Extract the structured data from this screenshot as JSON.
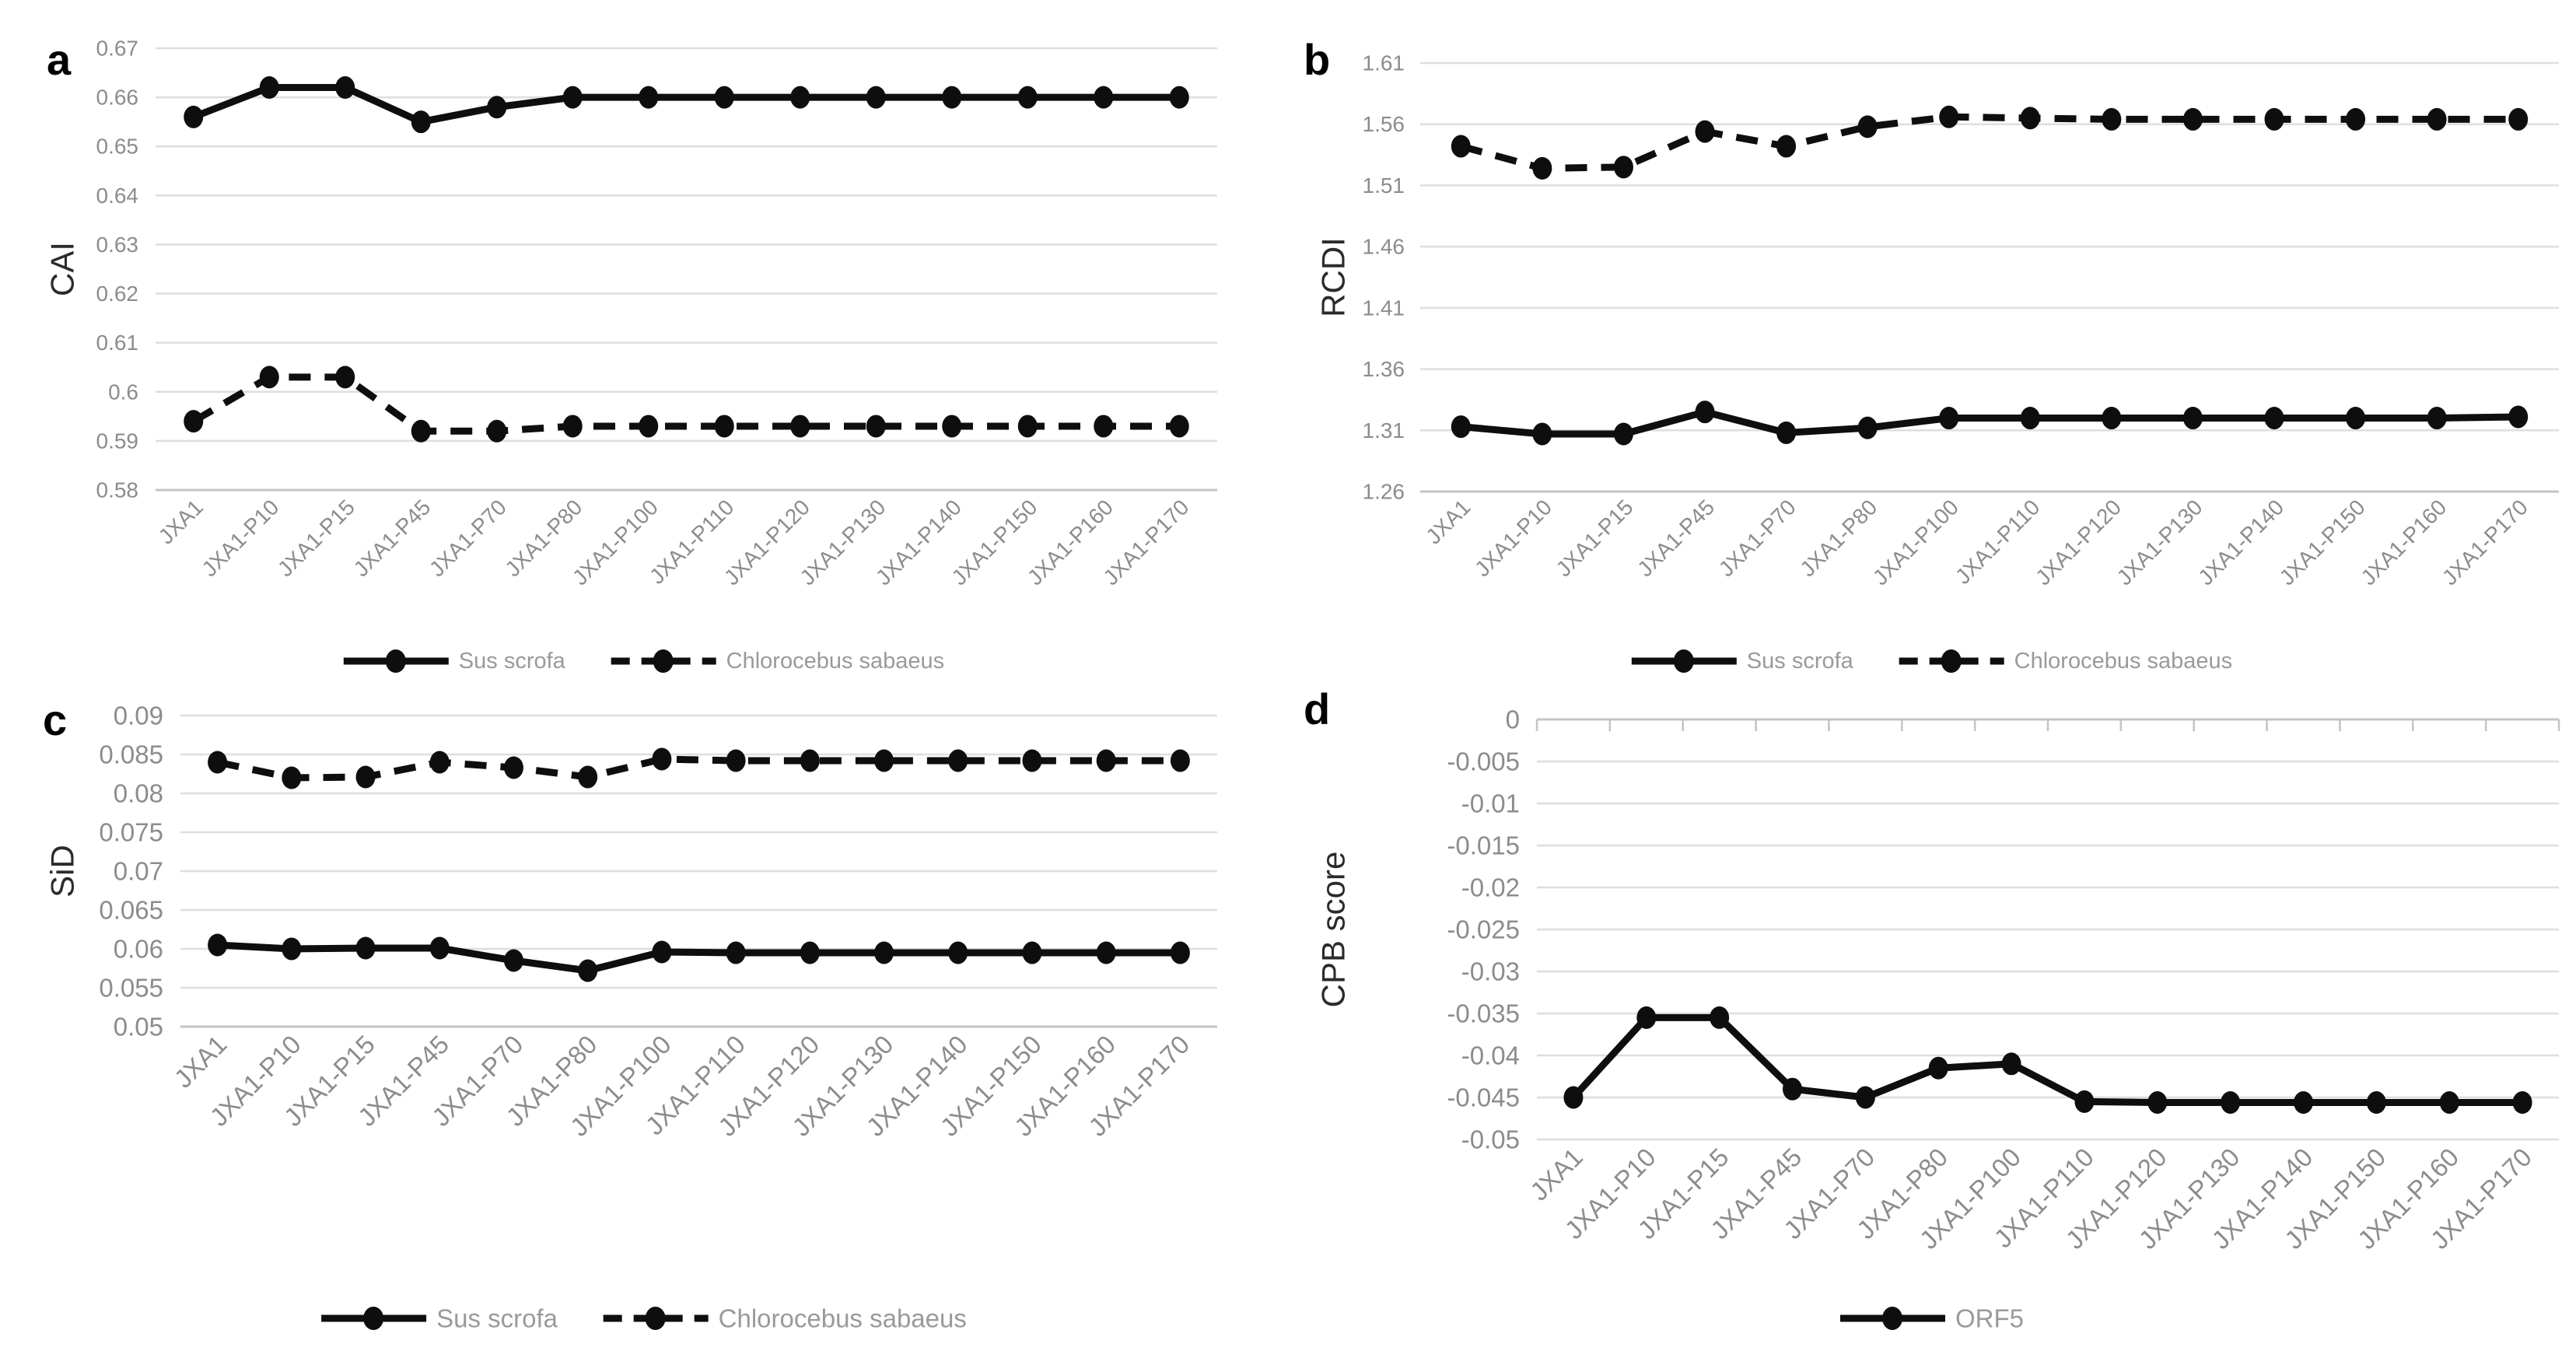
{
  "colors": {
    "background": "#ffffff",
    "line": "#0e0e0e",
    "gridline": "#dedede",
    "axis_line": "#c4c4c4",
    "tick_label": "#8c8c8c",
    "legend_label": "#9a9a9a",
    "axis_title": "#2b2b2b",
    "panel_letter": "#000000"
  },
  "chart_data": [
    {
      "id": "a",
      "panel_label": "a",
      "type": "line",
      "ylabel": "CAI",
      "ylim": [
        0.58,
        0.67
      ],
      "grid": true,
      "legend_position": "bottom",
      "ytick_values": [
        0.67,
        0.66,
        0.65,
        0.64,
        0.63,
        0.62,
        0.61,
        0.6,
        0.59,
        0.58
      ],
      "ytick_labels": [
        "0.67",
        "0.66",
        "0.65",
        "0.64",
        "0.63",
        "0.62",
        "0.61",
        "0.6",
        "0.59",
        "0.58"
      ],
      "categories": [
        "JXA1",
        "JXA1-P10",
        "JXA1-P15",
        "JXA1-P45",
        "JXA1-P70",
        "JXA1-P80",
        "JXA1-P100",
        "JXA1-P110",
        "JXA1-P120",
        "JXA1-P130",
        "JXA1-P140",
        "JXA1-P150",
        "JXA1-P160",
        "JXA1-P170"
      ],
      "series": [
        {
          "name": "Sus scrofa",
          "line_style": "solid",
          "values": [
            0.656,
            0.662,
            0.662,
            0.655,
            0.658,
            0.66,
            0.66,
            0.66,
            0.66,
            0.66,
            0.66,
            0.66,
            0.66,
            0.66
          ]
        },
        {
          "name": "Chlorocebus sabaeus",
          "line_style": "dashed",
          "values": [
            0.594,
            0.603,
            0.603,
            0.592,
            0.592,
            0.593,
            0.593,
            0.593,
            0.593,
            0.593,
            0.593,
            0.593,
            0.593,
            0.593
          ]
        }
      ]
    },
    {
      "id": "b",
      "panel_label": "b",
      "type": "line",
      "ylabel": "RCDI",
      "ylim": [
        1.26,
        1.61
      ],
      "grid": true,
      "legend_position": "bottom",
      "ytick_values": [
        1.61,
        1.56,
        1.51,
        1.46,
        1.41,
        1.36,
        1.31,
        1.26
      ],
      "ytick_labels": [
        "1.61",
        "1.56",
        "1.51",
        "1.46",
        "1.41",
        "1.36",
        "1.31",
        "1.26"
      ],
      "categories": [
        "JXA1",
        "JXA1-P10",
        "JXA1-P15",
        "JXA1-P45",
        "JXA1-P70",
        "JXA1-P80",
        "JXA1-P100",
        "JXA1-P110",
        "JXA1-P120",
        "JXA1-P130",
        "JXA1-P140",
        "JXA1-P150",
        "JXA1-P160",
        "JXA1-P170"
      ],
      "series": [
        {
          "name": "Sus scrofa",
          "line_style": "solid",
          "values": [
            1.313,
            1.307,
            1.307,
            1.325,
            1.308,
            1.312,
            1.32,
            1.32,
            1.32,
            1.32,
            1.32,
            1.32,
            1.32,
            1.321
          ]
        },
        {
          "name": "Chlorocebus sabaeus",
          "line_style": "dashed",
          "values": [
            1.542,
            1.524,
            1.525,
            1.554,
            1.542,
            1.558,
            1.566,
            1.565,
            1.564,
            1.564,
            1.564,
            1.564,
            1.564,
            1.564
          ]
        }
      ]
    },
    {
      "id": "c",
      "panel_label": "c",
      "type": "line",
      "ylabel": "SiD",
      "ylim": [
        0.05,
        0.09
      ],
      "grid": true,
      "legend_position": "bottom",
      "ytick_values": [
        0.09,
        0.085,
        0.08,
        0.075,
        0.07,
        0.065,
        0.06,
        0.055,
        0.05
      ],
      "ytick_labels": [
        "0.09",
        "0.085",
        "0.08",
        "0.075",
        "0.07",
        "0.065",
        "0.06",
        "0.055",
        "0.05"
      ],
      "categories": [
        "JXA1",
        "JXA1-P10",
        "JXA1-P15",
        "JXA1-P45",
        "JXA1-P70",
        "JXA1-P80",
        "JXA1-P100",
        "JXA1-P110",
        "JXA1-P120",
        "JXA1-P130",
        "JXA1-P140",
        "JXA1-P150",
        "JXA1-P160",
        "JXA1-P170"
      ],
      "series": [
        {
          "name": "Sus scrofa",
          "line_style": "solid",
          "values": [
            0.0605,
            0.06,
            0.0601,
            0.0601,
            0.0585,
            0.0572,
            0.0596,
            0.0595,
            0.0595,
            0.0595,
            0.0595,
            0.0595,
            0.0595,
            0.0595
          ]
        },
        {
          "name": "Chlorocebus sabaeus",
          "line_style": "dashed",
          "values": [
            0.084,
            0.082,
            0.0821,
            0.084,
            0.0833,
            0.0821,
            0.0844,
            0.0842,
            0.0842,
            0.0842,
            0.0842,
            0.0842,
            0.0842,
            0.0842
          ]
        }
      ]
    },
    {
      "id": "d",
      "panel_label": "d",
      "type": "line",
      "ylabel": "CPB score",
      "ylim": [
        -0.05,
        0
      ],
      "grid": true,
      "legend_position": "bottom",
      "ytick_values": [
        0,
        -0.005,
        -0.01,
        -0.015,
        -0.02,
        -0.025,
        -0.03,
        -0.035,
        -0.04,
        -0.045,
        -0.05
      ],
      "ytick_labels": [
        "0",
        "-0.005",
        "-0.01",
        "-0.015",
        "-0.02",
        "-0.025",
        "-0.03",
        "-0.035",
        "-0.04",
        "-0.045",
        "-0.05"
      ],
      "categories": [
        "JXA1",
        "JXA1-P10",
        "JXA1-P15",
        "JXA1-P45",
        "JXA1-P70",
        "JXA1-P80",
        "JXA1-P100",
        "JXA1-P110",
        "JXA1-P120",
        "JXA1-P130",
        "JXA1-P140",
        "JXA1-P150",
        "JXA1-P160",
        "JXA1-P170"
      ],
      "series": [
        {
          "name": "ORF5",
          "line_style": "solid",
          "values": [
            -0.045,
            -0.0355,
            -0.0355,
            -0.044,
            -0.045,
            -0.0415,
            -0.041,
            -0.0455,
            -0.0456,
            -0.0456,
            -0.0456,
            -0.0456,
            -0.0456,
            -0.0456
          ]
        }
      ]
    }
  ]
}
